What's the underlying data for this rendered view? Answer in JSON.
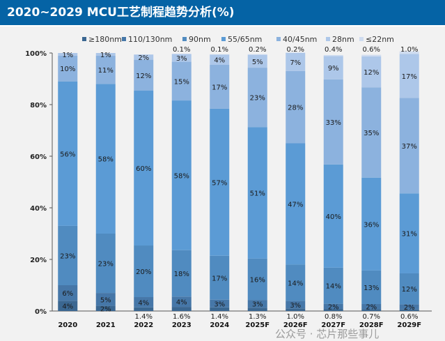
{
  "chart_data": {
    "type": "bar",
    "stacked": true,
    "title": "2020~2029 MCU工艺制程趋势分析(%)",
    "categories": [
      "2020",
      "2021",
      "2022",
      "2023",
      "2024",
      "2025F",
      "2026F",
      "2027F",
      "2028F",
      "2029F"
    ],
    "ylim": [
      0,
      100
    ],
    "yticks": [
      "0%",
      "20%",
      "40%",
      "60%",
      "80%",
      "100%"
    ],
    "legend_position": "top",
    "grid": false,
    "series": [
      {
        "name": "≥180nm",
        "color": "#3b6791",
        "values": [
          4,
          2,
          1.4,
          1.6,
          1.4,
          1.3,
          1.0,
          0.8,
          0.7,
          0.6
        ],
        "labels": [
          "4%",
          "2%",
          "1.4%",
          "1.6%",
          "1.4%",
          "1.3%",
          "1.0%",
          "0.8%",
          "0.7%",
          "0.6%"
        ]
      },
      {
        "name": "110/130nm",
        "color": "#4677a8",
        "values": [
          6,
          5,
          4,
          4,
          3,
          3,
          3,
          2,
          2,
          2
        ],
        "labels": [
          "6%",
          "5%",
          "4%",
          "4%",
          "3%",
          "3%",
          "3%",
          "2%",
          "2%",
          "2%"
        ]
      },
      {
        "name": "90nm",
        "color": "#508bc0",
        "values": [
          23,
          23,
          20,
          18,
          17,
          16,
          14,
          14,
          13,
          12
        ],
        "labels": [
          "23%",
          "23%",
          "20%",
          "18%",
          "17%",
          "16%",
          "14%",
          "14%",
          "13%",
          "12%"
        ]
      },
      {
        "name": "55/65nm",
        "color": "#5b9bd5",
        "values": [
          56,
          58,
          60,
          58,
          57,
          51,
          47,
          40,
          36,
          31
        ],
        "labels": [
          "56%",
          "58%",
          "60%",
          "58%",
          "57%",
          "51%",
          "47%",
          "40%",
          "36%",
          "31%"
        ]
      },
      {
        "name": "40/45nm",
        "color": "#8cb2de",
        "values": [
          10,
          11,
          12,
          15,
          17,
          23,
          28,
          33,
          35,
          37
        ],
        "labels": [
          "10%",
          "11%",
          "12%",
          "15%",
          "17%",
          "23%",
          "28%",
          "33%",
          "35%",
          "37%"
        ]
      },
      {
        "name": "28nm",
        "color": "#adc7e9",
        "values": [
          1,
          1,
          2,
          3,
          4,
          5,
          7,
          9,
          12,
          17
        ],
        "labels": [
          "1%",
          "1%",
          "2%",
          "3%",
          "4%",
          "5%",
          "7%",
          "9%",
          "12%",
          "17%"
        ]
      },
      {
        "name": "≤22nm",
        "color": "#cfdcf0",
        "values": [
          0,
          0,
          0,
          0.1,
          0.1,
          0.2,
          0.2,
          0.4,
          0.6,
          1.0
        ],
        "labels": [
          "",
          "",
          "",
          "0.1%",
          "0.1%",
          "0.2%",
          "0.2%",
          "0.4%",
          "0.6%",
          "1.0%"
        ]
      }
    ]
  },
  "watermark": "公众号 · 芯片那些事儿"
}
